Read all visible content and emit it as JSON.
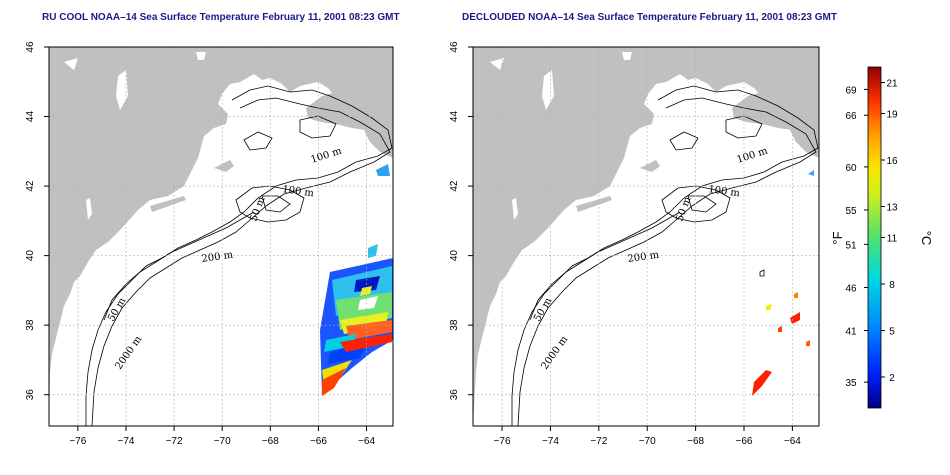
{
  "maps": [
    {
      "title": "RU COOL NOAA–14 Sea Surface Temperature February 11, 2001 08:23 GMT",
      "contour_labels": [
        "100 m",
        "100 m",
        "50 m",
        "200 m",
        "50 m",
        "2000 m"
      ],
      "sst_coverage": "dense swath"
    },
    {
      "title": "DECLOUDED NOAA–14 Sea Surface Temperature February 11, 2001 08:23 GMT",
      "contour_labels": [
        "100 m",
        "100 m",
        "50 m",
        "200 m",
        "50 m",
        "2000 m"
      ],
      "sst_coverage": "sparse clear-sky pixels"
    }
  ],
  "axes": {
    "x_ticks": [
      "−76",
      "−74",
      "−72",
      "−70",
      "−68",
      "−66",
      "−64"
    ],
    "x_values": [
      -76,
      -74,
      -72,
      -70,
      -68,
      -66,
      -64
    ],
    "y_ticks": [
      "36",
      "38",
      "40",
      "42",
      "44",
      "46"
    ],
    "y_values": [
      36,
      38,
      40,
      42,
      44,
      46
    ],
    "lon_range": [
      -77.2,
      -62.9
    ],
    "lat_range": [
      35.1,
      46.0
    ],
    "grid": "dotted"
  },
  "colorbar": {
    "fahrenheit_label": "°F",
    "celsius_label": "°C",
    "fahrenheit_ticks": [
      "69",
      "66",
      "60",
      "55",
      "51",
      "46",
      "41",
      "35"
    ],
    "fahrenheit_values": [
      69,
      66,
      60,
      55,
      51,
      46,
      41,
      35
    ],
    "celsius_ticks": [
      "21",
      "19",
      "16",
      "13",
      "11",
      "8",
      "5",
      "2"
    ],
    "celsius_values": [
      21,
      19,
      16,
      13,
      11,
      8,
      5,
      2
    ],
    "range_c": [
      0,
      22
    ],
    "colors": [
      "#0000a0",
      "#0030ff",
      "#00a0ff",
      "#00e0e0",
      "#40e080",
      "#a0f040",
      "#f0f000",
      "#ffb000",
      "#ff5000",
      "#e00000",
      "#900000"
    ]
  },
  "colors": {
    "land": "#c0c0c0",
    "ocean": "#ffffff",
    "contour": "#000000",
    "title": "#1a1a8c"
  }
}
